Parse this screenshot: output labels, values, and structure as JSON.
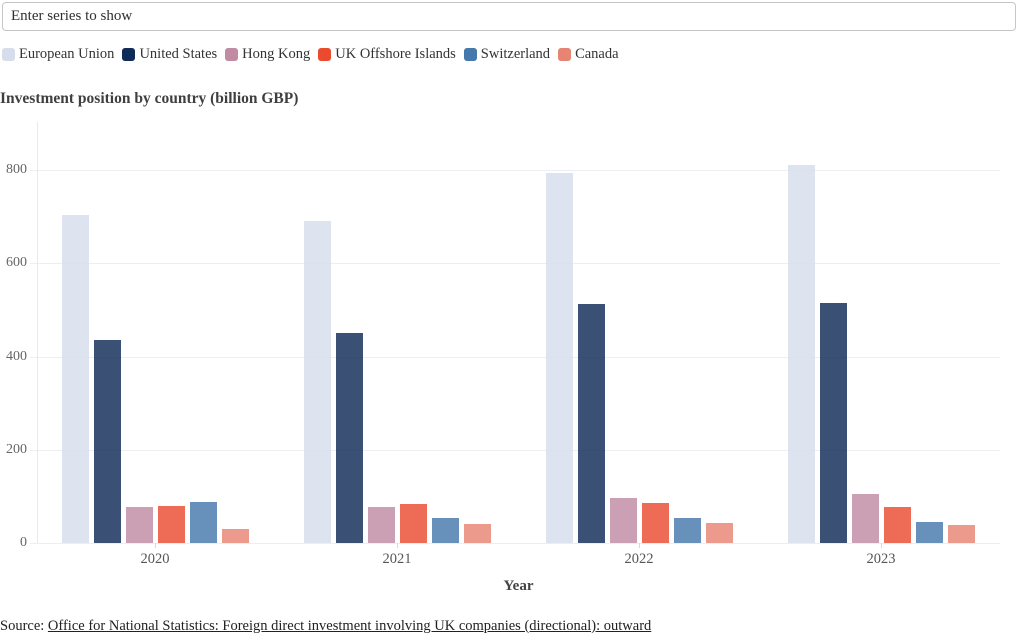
{
  "controls": {
    "series_input": {
      "placeholder": "Enter series to show"
    }
  },
  "chart_data": {
    "type": "bar",
    "title": "Investment position by country (billion GBP)",
    "xlabel": "Year",
    "ylabel": "",
    "categories": [
      "2020",
      "2021",
      "2022",
      "2023"
    ],
    "series": [
      {
        "name": "European Union",
        "color": "#d7deeb",
        "values": [
          703,
          690,
          793,
          810
        ]
      },
      {
        "name": "United States",
        "color": "#0f2b57",
        "values": [
          435,
          451,
          513,
          514
        ]
      },
      {
        "name": "Hong Kong",
        "color": "#c08ba3",
        "values": [
          77,
          77,
          97,
          105
        ]
      },
      {
        "name": "UK Offshore Islands",
        "color": "#ea4b2f",
        "values": [
          79,
          84,
          85,
          78
        ]
      },
      {
        "name": "Switzerland",
        "color": "#4679ab",
        "values": [
          88,
          53,
          54,
          46
        ]
      },
      {
        "name": "Canada",
        "color": "#e88473",
        "values": [
          29,
          41,
          43,
          39
        ]
      }
    ],
    "ylim": [
      0,
      860
    ],
    "yticks": [
      0,
      200,
      400,
      600,
      800
    ],
    "grid": true,
    "legend_position": "top"
  },
  "footer": {
    "source_prefix": "Source: ",
    "source_link": "Office for National Statistics: Foreign direct investment involving UK companies (directional): outward"
  }
}
